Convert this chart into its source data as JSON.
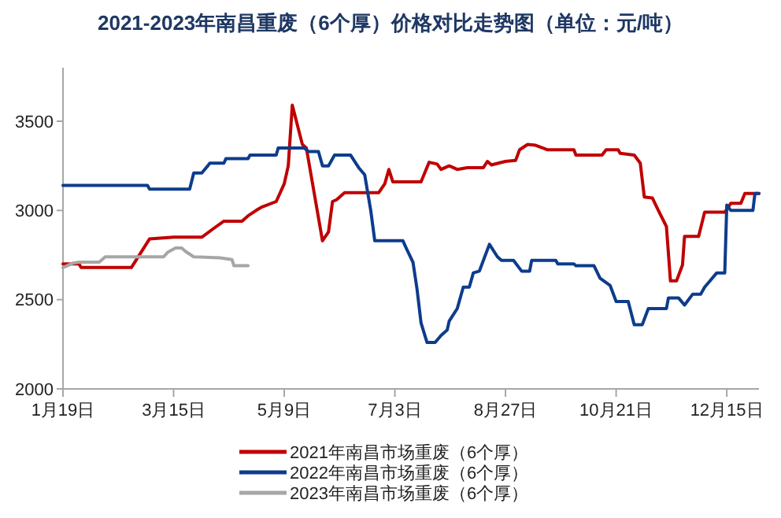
{
  "chart_data": {
    "type": "line",
    "title": "2021-2023年南昌重废（6个厚）价格对比走势图（单位：元/吨）",
    "xlim": [
      "--01-19",
      "--12-31"
    ],
    "xticks": [
      {
        "value": "--01-19",
        "label": "1月19日"
      },
      {
        "value": "--03-15",
        "label": "3月15日"
      },
      {
        "value": "--05-09",
        "label": "5月9日"
      },
      {
        "value": "--07-03",
        "label": "7月3日"
      },
      {
        "value": "--08-27",
        "label": "8月27日"
      },
      {
        "value": "--10-21",
        "label": "10月21日"
      },
      {
        "value": "--12-15",
        "label": "12月15日"
      }
    ],
    "ylim": [
      2000,
      3800
    ],
    "yticks": [
      2000,
      2500,
      3000,
      3500
    ],
    "grid": false,
    "legend": "bottom",
    "marker": "none",
    "line_style": "solid",
    "series": [
      {
        "name": "2021年南昌市场重废（6个厚）",
        "color": "#c00000",
        "x": [
          "--01-19",
          "--01-27",
          "--01-28",
          "--02-22",
          "--03-03",
          "--03-15",
          "--03-29",
          "--04-04",
          "--04-09",
          "--04-18",
          "--04-21",
          "--04-25",
          "--04-28",
          "--05-05",
          "--05-09",
          "--05-11",
          "--05-13",
          "--05-18",
          "--05-20",
          "--05-28",
          "--05-31",
          "--06-02",
          "--06-04",
          "--06-08",
          "--06-25",
          "--06-28",
          "--06-30",
          "--07-02",
          "--07-16",
          "--07-20",
          "--07-24",
          "--07-26",
          "--07-30",
          "--08-03",
          "--08-08",
          "--08-16",
          "--08-18",
          "--08-20",
          "--08-27",
          "--09-01",
          "--09-03",
          "--09-07",
          "--09-11",
          "--09-17",
          "--09-30",
          "--10-01",
          "--10-14",
          "--10-16",
          "--10-22",
          "--10-23",
          "--10-30",
          "--11-02",
          "--11-04",
          "--11-08",
          "--11-11",
          "--11-15",
          "--11-17",
          "--11-20",
          "--11-23",
          "--11-24",
          "--12-01",
          "--12-04",
          "--12-14",
          "--12-17",
          "--12-22",
          "--12-24",
          "--12-31"
        ],
        "values": [
          2700,
          2700,
          2680,
          2680,
          2840,
          2850,
          2850,
          2900,
          2940,
          2940,
          2970,
          3000,
          3020,
          3050,
          3150,
          3250,
          3590,
          3370,
          3350,
          2830,
          2880,
          3050,
          3060,
          3100,
          3100,
          3150,
          3230,
          3160,
          3160,
          3270,
          3260,
          3230,
          3250,
          3230,
          3240,
          3240,
          3275,
          3255,
          3275,
          3280,
          3340,
          3370,
          3365,
          3340,
          3340,
          3310,
          3310,
          3340,
          3340,
          3320,
          3310,
          3265,
          3075,
          3070,
          3000,
          2910,
          2605,
          2605,
          2695,
          2855,
          2855,
          2990,
          2990,
          3040,
          3040,
          3095,
          3095
        ]
      },
      {
        "name": "2022年南昌市场重废（6个厚）",
        "color": "#0d3c8c",
        "x": [
          "--01-19",
          "--03-02",
          "--03-03",
          "--03-23",
          "--03-25",
          "--03-29",
          "--04-01",
          "--04-02",
          "--04-09",
          "--04-10",
          "--04-21",
          "--04-22",
          "--05-05",
          "--05-06",
          "--05-19",
          "--05-21",
          "--05-26",
          "--05-28",
          "--05-31",
          "--06-03",
          "--06-11",
          "--06-15",
          "--06-18",
          "--06-21",
          "--06-23",
          "--07-07",
          "--07-09",
          "--07-12",
          "--07-14",
          "--07-16",
          "--07-19",
          "--07-23",
          "--07-26",
          "--07-29",
          "--07-30",
          "--08-03",
          "--08-06",
          "--08-09",
          "--08-11",
          "--08-14",
          "--08-16",
          "--08-19",
          "--08-23",
          "--08-25",
          "--08-31",
          "--09-04",
          "--09-08",
          "--09-09",
          "--09-21",
          "--09-22",
          "--09-30",
          "--10-01",
          "--10-10",
          "--10-13",
          "--10-18",
          "--10-21",
          "--10-27",
          "--10-30",
          "--11-03",
          "--11-06",
          "--11-15",
          "--11-16",
          "--11-21",
          "--11-24",
          "--11-28",
          "--12-02",
          "--12-04",
          "--12-07",
          "--12-10",
          "--12-14",
          "--12-15",
          "--12-17",
          "--12-28",
          "--12-29",
          "--12-31"
        ],
        "values": [
          3140,
          3140,
          3120,
          3120,
          3210,
          3210,
          3250,
          3265,
          3265,
          3290,
          3290,
          3310,
          3310,
          3350,
          3350,
          3330,
          3330,
          3250,
          3250,
          3310,
          3310,
          3240,
          3200,
          3000,
          2830,
          2830,
          2780,
          2710,
          2560,
          2370,
          2260,
          2260,
          2300,
          2330,
          2380,
          2450,
          2570,
          2570,
          2650,
          2660,
          2720,
          2810,
          2740,
          2720,
          2720,
          2660,
          2660,
          2720,
          2720,
          2700,
          2700,
          2690,
          2690,
          2620,
          2580,
          2490,
          2490,
          2360,
          2360,
          2450,
          2450,
          2510,
          2510,
          2470,
          2530,
          2530,
          2570,
          2610,
          2650,
          2650,
          3030,
          3000,
          3000,
          3095,
          3095
        ]
      },
      {
        "name": "2023年南昌市场重废（6个厚）",
        "color": "#a6a6a6",
        "x": [
          "--01-19",
          "--01-24",
          "--01-27",
          "--02-06",
          "--02-09",
          "--03-10",
          "--03-12",
          "--03-16",
          "--03-19",
          "--03-21",
          "--03-25",
          "--04-07",
          "--04-13",
          "--04-14",
          "--04-21"
        ],
        "values": [
          2680,
          2705,
          2710,
          2710,
          2740,
          2740,
          2765,
          2790,
          2790,
          2770,
          2740,
          2735,
          2725,
          2690,
          2690
        ]
      }
    ]
  }
}
